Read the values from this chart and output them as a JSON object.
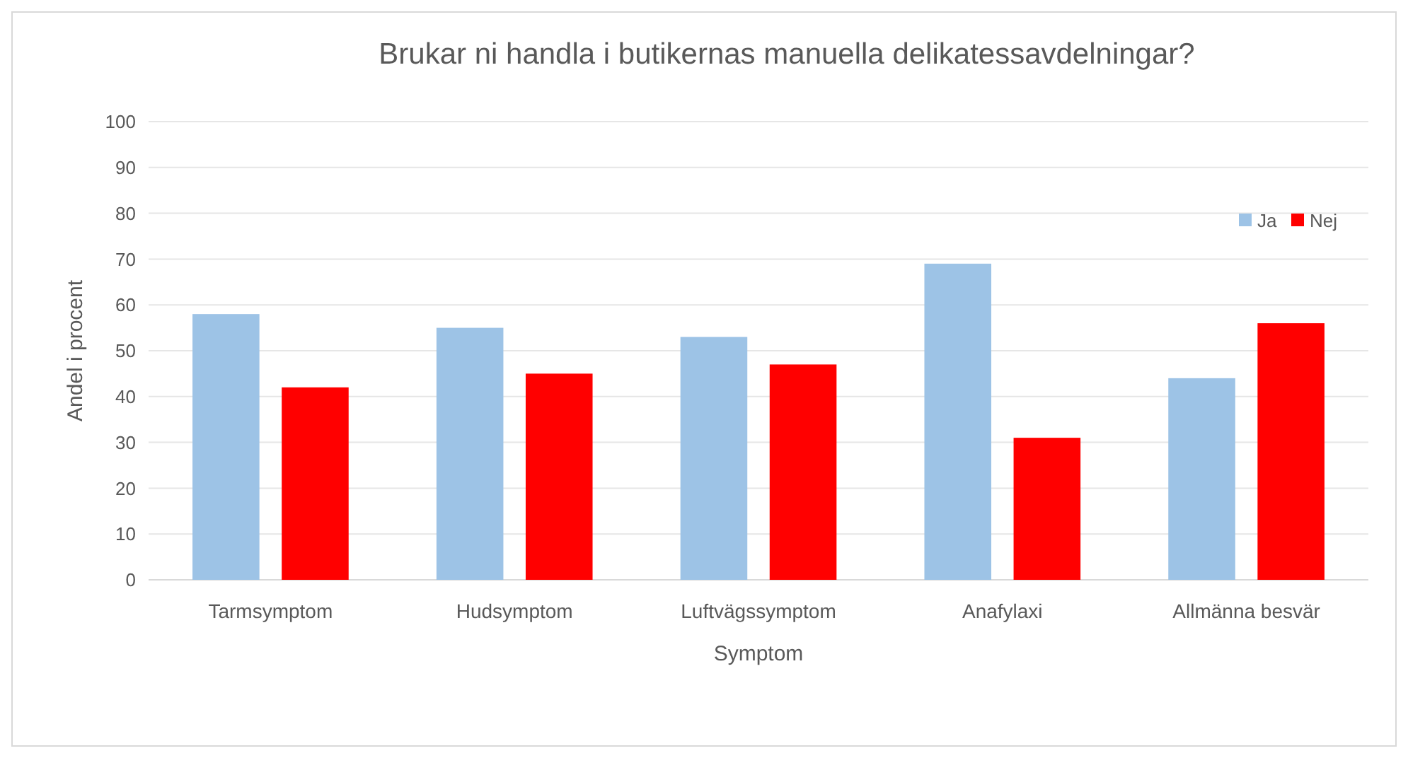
{
  "chart_data": {
    "type": "bar",
    "title": "Brukar ni handla i butikernas manuella delikatessavdelningar?",
    "xlabel": "Symptom",
    "ylabel": "Andel i procent",
    "categories": [
      "Tarmsymptom",
      "Hudsymptom",
      "Luftvägssymptom",
      "Anafylaxi",
      "Allmänna besvär"
    ],
    "series": [
      {
        "name": "Ja",
        "color": "#9dc3e6",
        "values": [
          58,
          55,
          53,
          69,
          44
        ]
      },
      {
        "name": "Nej",
        "color": "#ff0000",
        "values": [
          42,
          45,
          47,
          31,
          56
        ]
      }
    ],
    "ylim": [
      0,
      100
    ],
    "yticks": [
      0,
      10,
      20,
      30,
      40,
      50,
      60,
      70,
      80,
      90,
      100
    ],
    "grid": "y",
    "legend": "top right"
  }
}
